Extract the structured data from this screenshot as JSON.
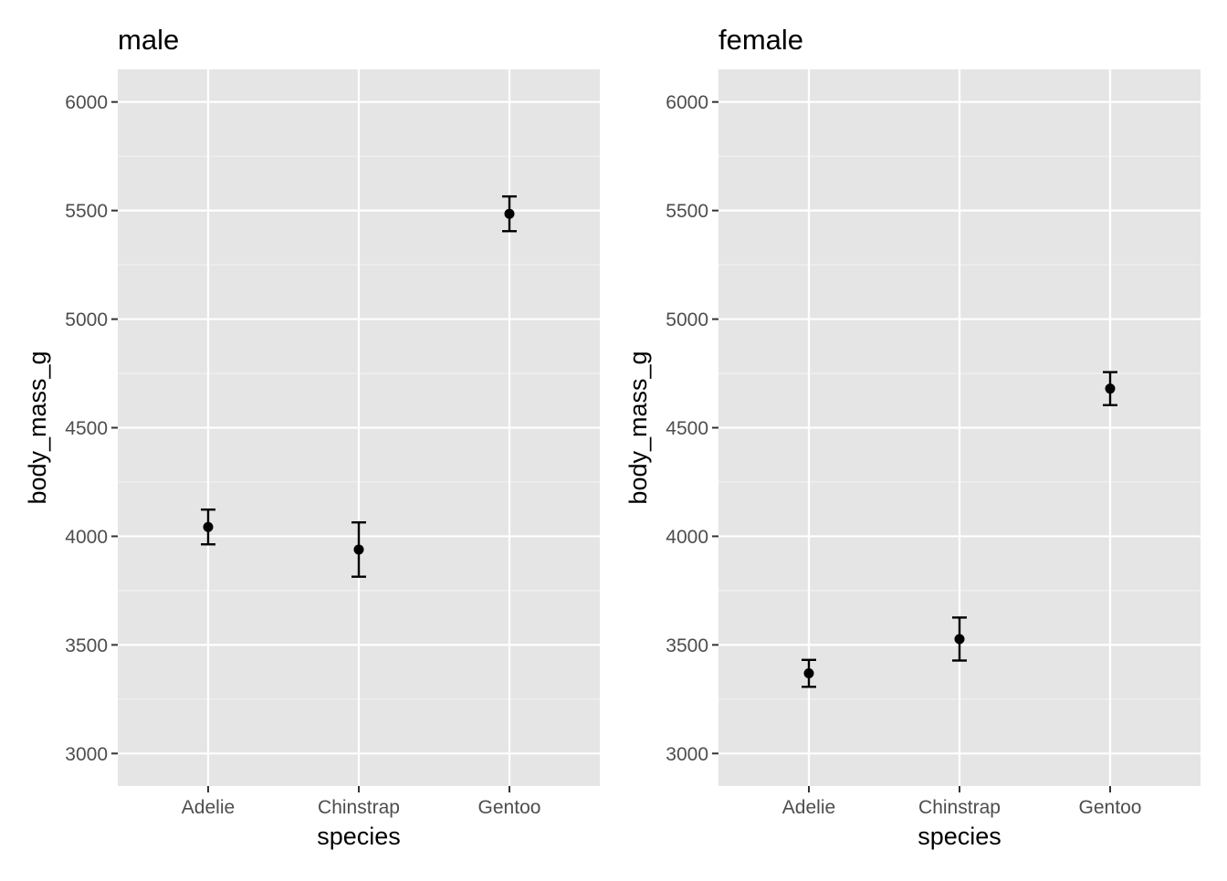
{
  "chart_data": [
    {
      "type": "errorbar",
      "title": "male",
      "xlabel": "species",
      "ylabel": "body_mass_g",
      "categories": [
        "Adelie",
        "Chinstrap",
        "Gentoo"
      ],
      "series": [
        {
          "mean": [
            4043,
            3939,
            5485
          ],
          "lower": [
            3963,
            3814,
            5405
          ],
          "upper": [
            4123,
            4064,
            5565
          ]
        }
      ],
      "ylim": [
        2850,
        6150
      ],
      "yticks": [
        3000,
        3500,
        4000,
        4500,
        5000,
        5500,
        6000
      ],
      "yticklabels": [
        "3000",
        "3500",
        "4000",
        "4500",
        "5000",
        "5500",
        "6000"
      ],
      "grid": true
    },
    {
      "type": "errorbar",
      "title": "female",
      "xlabel": "species",
      "ylabel": "body_mass_g",
      "categories": [
        "Adelie",
        "Chinstrap",
        "Gentoo"
      ],
      "series": [
        {
          "mean": [
            3369,
            3527,
            4680
          ],
          "lower": [
            3307,
            3428,
            4604
          ],
          "upper": [
            3431,
            3626,
            4756
          ]
        }
      ],
      "ylim": [
        2850,
        6150
      ],
      "yticks": [
        3000,
        3500,
        4000,
        4500,
        5000,
        5500,
        6000
      ],
      "yticklabels": [
        "3000",
        "3500",
        "4000",
        "4500",
        "5000",
        "5500",
        "6000"
      ],
      "grid": true
    }
  ],
  "colors": {
    "panel_background": "#e5e5e5",
    "grid_major": "#ffffff",
    "grid_minor": "#f2f2f2",
    "tick": "#333333",
    "tick_label": "#4d4d4d",
    "marker": "#000000"
  }
}
